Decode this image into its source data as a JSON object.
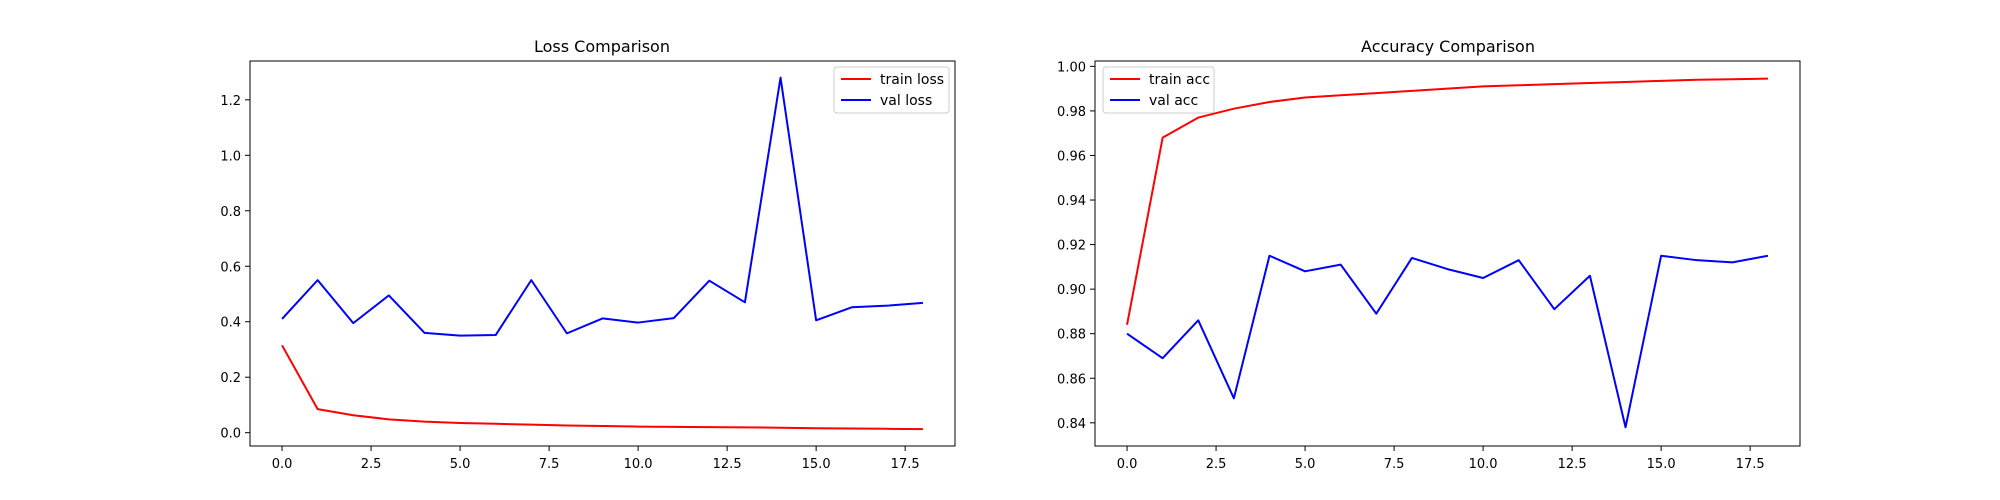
{
  "chart_data": [
    {
      "type": "line",
      "title": "Loss Comparison",
      "xlabel": "",
      "ylabel": "",
      "xlim": [
        -0.9,
        18.9
      ],
      "ylim": [
        -0.048,
        1.34
      ],
      "xticks": [
        0.0,
        2.5,
        5.0,
        7.5,
        10.0,
        12.5,
        15.0,
        17.5
      ],
      "xtick_labels": [
        "0.0",
        "2.5",
        "5.0",
        "7.5",
        "10.0",
        "12.5",
        "15.0",
        "17.5"
      ],
      "yticks": [
        0.0,
        0.2,
        0.4,
        0.6,
        0.8,
        1.0,
        1.2
      ],
      "ytick_labels": [
        "0.0",
        "0.2",
        "0.4",
        "0.6",
        "0.8",
        "1.0",
        "1.2"
      ],
      "legend_position": "top-right",
      "grid": false,
      "x": [
        0,
        1,
        2,
        3,
        4,
        5,
        6,
        7,
        8,
        9,
        10,
        11,
        12,
        13,
        14,
        15,
        16,
        17,
        18
      ],
      "series": [
        {
          "name": "train loss",
          "color": "#ff0000",
          "values": [
            0.315,
            0.085,
            0.063,
            0.048,
            0.04,
            0.035,
            0.032,
            0.029,
            0.026,
            0.024,
            0.022,
            0.021,
            0.02,
            0.019,
            0.018,
            0.016,
            0.015,
            0.014,
            0.013
          ]
        },
        {
          "name": "val loss",
          "color": "#0000ff",
          "values": [
            0.41,
            0.55,
            0.395,
            0.495,
            0.36,
            0.35,
            0.352,
            0.55,
            0.358,
            0.412,
            0.397,
            0.413,
            0.548,
            0.47,
            1.28,
            0.405,
            0.452,
            0.458,
            0.468
          ]
        }
      ]
    },
    {
      "type": "line",
      "title": "Accuracy Comparison",
      "xlabel": "",
      "ylabel": "",
      "xlim": [
        -0.9,
        18.9
      ],
      "ylim": [
        0.8296,
        1.0024
      ],
      "xticks": [
        0.0,
        2.5,
        5.0,
        7.5,
        10.0,
        12.5,
        15.0,
        17.5
      ],
      "xtick_labels": [
        "0.0",
        "2.5",
        "5.0",
        "7.5",
        "10.0",
        "12.5",
        "15.0",
        "17.5"
      ],
      "yticks": [
        0.84,
        0.86,
        0.88,
        0.9,
        0.92,
        0.94,
        0.96,
        0.98,
        1.0
      ],
      "ytick_labels": [
        "0.84",
        "0.86",
        "0.88",
        "0.90",
        "0.92",
        "0.94",
        "0.96",
        "0.98",
        "1.00"
      ],
      "legend_position": "top-left",
      "grid": false,
      "x": [
        0,
        1,
        2,
        3,
        4,
        5,
        6,
        7,
        8,
        9,
        10,
        11,
        12,
        13,
        14,
        15,
        16,
        17,
        18
      ],
      "series": [
        {
          "name": "train acc",
          "color": "#ff0000",
          "values": [
            0.884,
            0.968,
            0.977,
            0.981,
            0.984,
            0.986,
            0.987,
            0.988,
            0.989,
            0.99,
            0.991,
            0.9915,
            0.992,
            0.9925,
            0.993,
            0.9935,
            0.994,
            0.9942,
            0.9945
          ]
        },
        {
          "name": "val acc",
          "color": "#0000ff",
          "values": [
            0.88,
            0.869,
            0.886,
            0.851,
            0.915,
            0.908,
            0.911,
            0.889,
            0.914,
            0.909,
            0.905,
            0.913,
            0.891,
            0.906,
            0.838,
            0.915,
            0.913,
            0.912,
            0.915
          ]
        }
      ]
    }
  ]
}
